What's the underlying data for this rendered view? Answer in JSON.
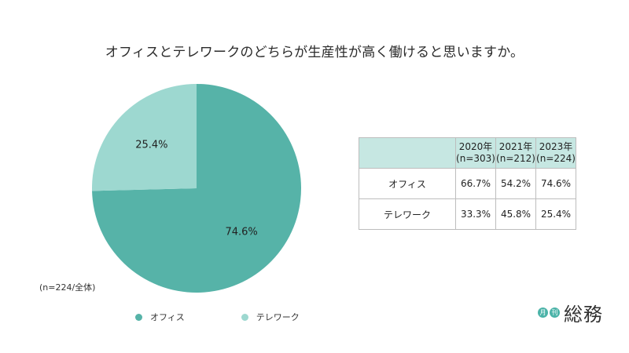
{
  "colors": {
    "office": "#56b3a8",
    "telework": "#9dd8d0",
    "table_header_bg": "#c6e7e2",
    "logo_accent": "#4bb3a8"
  },
  "chart_data": {
    "type": "pie",
    "title": "オフィスとテレワークのどちらが生産性が高く働けると思いますか。",
    "slices": [
      {
        "label": "オフィス",
        "value": 74.6,
        "display": "74.6%"
      },
      {
        "label": "テレワーク",
        "value": 25.4,
        "display": "25.4%"
      }
    ],
    "legend": [
      "オフィス",
      "テレワーク"
    ],
    "legend_position": "bottom",
    "note": "(n=224/全体)"
  },
  "table": {
    "headers": [
      {
        "year": "2020年",
        "n": "(n=303)"
      },
      {
        "year": "2021年",
        "n": "(n=212)"
      },
      {
        "year": "2023年",
        "n": "(n=224)"
      }
    ],
    "rows": [
      {
        "label": "オフィス",
        "values": [
          "66.7%",
          "54.2%",
          "74.6%"
        ]
      },
      {
        "label": "テレワーク",
        "values": [
          "33.3%",
          "45.8%",
          "25.4%"
        ]
      }
    ]
  },
  "logo": {
    "dot1": "月",
    "dot2": "刊",
    "text": "総務"
  }
}
